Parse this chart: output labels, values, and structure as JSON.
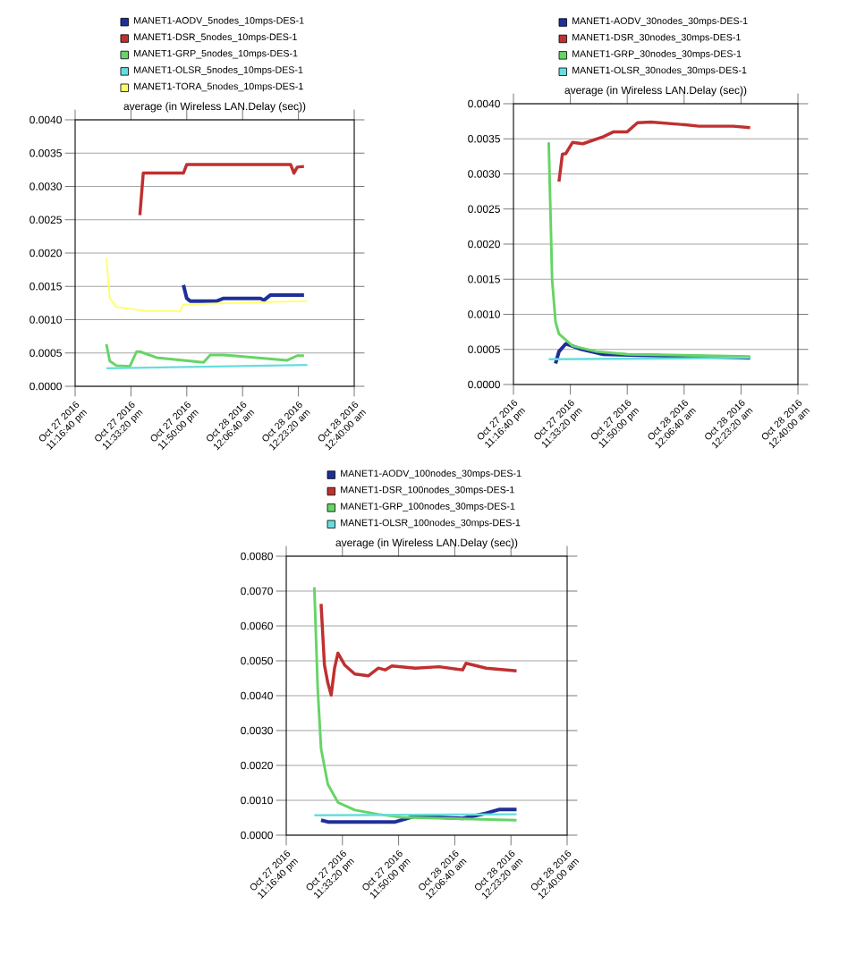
{
  "chart_data": [
    {
      "type": "line",
      "title": "average (in Wireless LAN.Delay (sec))",
      "grid": "y",
      "legend": "top",
      "xlim": [
        "2016-10-27T23:16:40",
        "2016-10-28T00:40:00"
      ],
      "ylim": [
        0,
        0.004
      ],
      "xticks": [
        {
          "value": "2016-10-27T23:16:40",
          "label": "Oct 27 2016 11:16:40 pm"
        },
        {
          "value": "2016-10-27T23:33:20",
          "label": "Oct 27 2016 11:33:20 pm"
        },
        {
          "value": "2016-10-27T23:50:00",
          "label": "Oct 27 2016 11:50:00 pm"
        },
        {
          "value": "2016-10-28T00:06:40",
          "label": "Oct 28 2016 12:06:40 am"
        },
        {
          "value": "2016-10-28T00:23:20",
          "label": "Oct 28 2016 12:23:20 am"
        },
        {
          "value": "2016-10-28T00:40:00",
          "label": "Oct 28 2016 12:40:00 am"
        }
      ],
      "yticks": [
        {
          "value": 0,
          "label": "0.0000"
        },
        {
          "value": 0.0005,
          "label": "0.0005"
        },
        {
          "value": 0.001,
          "label": "0.0010"
        },
        {
          "value": 0.0015,
          "label": "0.0015"
        },
        {
          "value": 0.002,
          "label": "0.0020"
        },
        {
          "value": 0.0025,
          "label": "0.0025"
        },
        {
          "value": 0.003,
          "label": "0.0030"
        },
        {
          "value": 0.0035,
          "label": "0.0035"
        },
        {
          "value": 0.004,
          "label": "0.0040"
        }
      ],
      "series": [
        {
          "name": "MANET1-AODV_5nodes_10mps-DES-1",
          "color": "#1f2f9a",
          "x": [
            "2016-10-27T23:49",
            "2016-10-27T23:50",
            "2016-10-27T23:51",
            "2016-10-27T23:59",
            "2016-10-28T00:01",
            "2016-10-28T00:12",
            "2016-10-28T00:13",
            "2016-10-28T00:15",
            "2016-10-28T00:25"
          ],
          "values": [
            0.00152,
            0.00132,
            0.00128,
            0.00128,
            0.00132,
            0.00132,
            0.00129,
            0.00137,
            0.00137
          ]
        },
        {
          "name": "MANET1-DSR_5nodes_10mps-DES-1",
          "color": "#c03030",
          "x": [
            "2016-10-27T23:36",
            "2016-10-27T23:37",
            "2016-10-27T23:49",
            "2016-10-27T23:50",
            "2016-10-28T00:21",
            "2016-10-28T00:22",
            "2016-10-28T00:23",
            "2016-10-28T00:25"
          ],
          "values": [
            0.00257,
            0.0032,
            0.0032,
            0.00333,
            0.00333,
            0.0032,
            0.00329,
            0.0033
          ]
        },
        {
          "name": "MANET1-GRP_5nodes_10mps-DES-1",
          "color": "#66d466",
          "x": [
            "2016-10-27T23:26",
            "2016-10-27T23:27",
            "2016-10-27T23:29",
            "2016-10-27T23:33",
            "2016-10-27T23:35",
            "2016-10-27T23:36",
            "2016-10-27T23:41",
            "2016-10-27T23:55",
            "2016-10-27T23:57",
            "2016-10-28T00:01",
            "2016-10-28T00:20",
            "2016-10-28T00:23",
            "2016-10-28T00:25"
          ],
          "values": [
            0.00063,
            0.00038,
            0.00031,
            0.0003,
            0.00052,
            0.00052,
            0.00043,
            0.00036,
            0.00047,
            0.00047,
            0.00039,
            0.00046,
            0.00046
          ]
        },
        {
          "name": "MANET1-OLSR_5nodes_10mps-DES-1",
          "color": "#66dddd",
          "x": [
            "2016-10-27T23:26",
            "2016-10-28T00:26"
          ],
          "values": [
            0.00027,
            0.00032
          ]
        },
        {
          "name": "MANET1-TORA_5nodes_10mps-DES-1",
          "color": "#ffff66",
          "x": [
            "2016-10-27T23:26",
            "2016-10-27T23:27",
            "2016-10-27T23:29",
            "2016-10-27T23:38",
            "2016-10-27T23:48",
            "2016-10-27T23:49",
            "2016-10-27T23:50",
            "2016-10-28T00:26"
          ],
          "values": [
            0.00193,
            0.00132,
            0.00119,
            0.00113,
            0.00113,
            0.00123,
            0.00123,
            0.00128
          ]
        }
      ]
    },
    {
      "type": "line",
      "title": "average (in Wireless LAN.Delay (sec))",
      "grid": "y",
      "legend": "top",
      "xlim": [
        "2016-10-27T23:16:40",
        "2016-10-28T00:40:00"
      ],
      "ylim": [
        0,
        0.004
      ],
      "xticks": [
        {
          "value": "2016-10-27T23:16:40",
          "label": "Oct 27 2016 11:16:40 pm"
        },
        {
          "value": "2016-10-27T23:33:20",
          "label": "Oct 27 2016 11:33:20 pm"
        },
        {
          "value": "2016-10-27T23:50:00",
          "label": "Oct 27 2016 11:50:00 pm"
        },
        {
          "value": "2016-10-28T00:06:40",
          "label": "Oct 28 2016 12:06:40 am"
        },
        {
          "value": "2016-10-28T00:23:20",
          "label": "Oct 28 2016 12:23:20 am"
        },
        {
          "value": "2016-10-28T00:40:00",
          "label": "Oct 28 2016 12:40:00 am"
        }
      ],
      "yticks": [
        {
          "value": 0,
          "label": "0.0000"
        },
        {
          "value": 0.0005,
          "label": "0.0005"
        },
        {
          "value": 0.001,
          "label": "0.0010"
        },
        {
          "value": 0.0015,
          "label": "0.0015"
        },
        {
          "value": 0.002,
          "label": "0.0020"
        },
        {
          "value": 0.0025,
          "label": "0.0025"
        },
        {
          "value": 0.003,
          "label": "0.0030"
        },
        {
          "value": 0.0035,
          "label": "0.0035"
        },
        {
          "value": 0.004,
          "label": "0.0040"
        }
      ],
      "series": [
        {
          "name": "MANET1-AODV_30nodes_30mps-DES-1",
          "color": "#1f2f9a",
          "x": [
            "2016-10-27T23:29",
            "2016-10-27T23:30",
            "2016-10-27T23:32",
            "2016-10-27T23:36",
            "2016-10-27T23:43",
            "2016-10-28T00:26"
          ],
          "values": [
            0.0003,
            0.00047,
            0.00058,
            0.00051,
            0.00043,
            0.00038
          ]
        },
        {
          "name": "MANET1-DSR_30nodes_30mps-DES-1",
          "color": "#c03030",
          "x": [
            "2016-10-27T23:30",
            "2016-10-27T23:31",
            "2016-10-27T23:32",
            "2016-10-27T23:34",
            "2016-10-27T23:37",
            "2016-10-27T23:43",
            "2016-10-27T23:46",
            "2016-10-27T23:50",
            "2016-10-27T23:53",
            "2016-10-27T23:57",
            "2016-10-28T00:07",
            "2016-10-28T00:11",
            "2016-10-28T00:21",
            "2016-10-28T00:26"
          ],
          "values": [
            0.00289,
            0.00328,
            0.00329,
            0.00345,
            0.00343,
            0.00353,
            0.0036,
            0.0036,
            0.00373,
            0.00374,
            0.0037,
            0.00368,
            0.00368,
            0.00366
          ]
        },
        {
          "name": "MANET1-GRP_30nodes_30mps-DES-1",
          "color": "#66d466",
          "x": [
            "2016-10-27T23:27",
            "2016-10-27T23:28",
            "2016-10-27T23:29",
            "2016-10-27T23:30",
            "2016-10-27T23:34",
            "2016-10-27T23:41",
            "2016-10-27T23:50",
            "2016-10-28T00:26"
          ],
          "values": [
            0.00345,
            0.00149,
            0.00089,
            0.00072,
            0.00055,
            0.00047,
            0.00043,
            0.0004
          ]
        },
        {
          "name": "MANET1-OLSR_30nodes_30mps-DES-1",
          "color": "#66dddd",
          "x": [
            "2016-10-27T23:27",
            "2016-10-28T00:26"
          ],
          "values": [
            0.00036,
            0.00038
          ]
        }
      ]
    },
    {
      "type": "line",
      "title": "average (in Wireless LAN.Delay (sec))",
      "grid": "y",
      "legend": "top",
      "xlim": [
        "2016-10-27T23:16:40",
        "2016-10-28T00:40:00"
      ],
      "ylim": [
        0,
        0.008
      ],
      "xticks": [
        {
          "value": "2016-10-27T23:16:40",
          "label": "Oct 27 2016 11:16:40 pm"
        },
        {
          "value": "2016-10-27T23:33:20",
          "label": "Oct 27 2016 11:33:20 pm"
        },
        {
          "value": "2016-10-27T23:50:00",
          "label": "Oct 27 2016 11:50:00 pm"
        },
        {
          "value": "2016-10-28T00:06:40",
          "label": "Oct 28 2016 12:06:40 am"
        },
        {
          "value": "2016-10-28T00:23:20",
          "label": "Oct 28 2016 12:23:20 am"
        },
        {
          "value": "2016-10-28T00:40:00",
          "label": "Oct 28 2016 12:40:00 am"
        }
      ],
      "yticks": [
        {
          "value": 0,
          "label": "0.0000"
        },
        {
          "value": 0.001,
          "label": "0.0010"
        },
        {
          "value": 0.002,
          "label": "0.0020"
        },
        {
          "value": 0.003,
          "label": "0.0030"
        },
        {
          "value": 0.004,
          "label": "0.0040"
        },
        {
          "value": 0.005,
          "label": "0.0050"
        },
        {
          "value": 0.006,
          "label": "0.0060"
        },
        {
          "value": 0.007,
          "label": "0.0070"
        },
        {
          "value": 0.008,
          "label": "0.0080"
        }
      ],
      "series": [
        {
          "name": "MANET1-AODV_100nodes_30mps-DES-1",
          "color": "#1f2f9a",
          "x": [
            "2016-10-27T23:27",
            "2016-10-27T23:29",
            "2016-10-27T23:49",
            "2016-10-27T23:55",
            "2016-10-28T00:09",
            "2016-10-28T00:16",
            "2016-10-28T00:20",
            "2016-10-28T00:25"
          ],
          "values": [
            0.00043,
            0.00038,
            0.00038,
            0.00055,
            0.00048,
            0.00063,
            0.00074,
            0.00074
          ]
        },
        {
          "name": "MANET1-DSR_100nodes_30mps-DES-1",
          "color": "#c03030",
          "x": [
            "2016-10-27T23:27",
            "2016-10-27T23:28",
            "2016-10-27T23:29",
            "2016-10-27T23:30",
            "2016-10-27T23:31",
            "2016-10-27T23:32",
            "2016-10-27T23:34",
            "2016-10-27T23:37",
            "2016-10-27T23:41",
            "2016-10-27T23:44",
            "2016-10-27T23:46",
            "2016-10-27T23:48",
            "2016-10-27T23:55",
            "2016-10-28T00:02",
            "2016-10-28T00:09",
            "2016-10-28T00:10",
            "2016-10-28T00:16",
            "2016-10-28T00:25"
          ],
          "values": [
            0.00663,
            0.00488,
            0.00437,
            0.00402,
            0.00479,
            0.00522,
            0.00488,
            0.00462,
            0.00457,
            0.00479,
            0.00474,
            0.00485,
            0.00479,
            0.00483,
            0.00474,
            0.00493,
            0.00479,
            0.00471
          ]
        },
        {
          "name": "MANET1-GRP_100nodes_30mps-DES-1",
          "color": "#66d466",
          "x": [
            "2016-10-27T23:25",
            "2016-10-27T23:26",
            "2016-10-27T23:27",
            "2016-10-27T23:29",
            "2016-10-27T23:32",
            "2016-10-27T23:37",
            "2016-10-27T23:44",
            "2016-10-27T23:51",
            "2016-10-28T00:25"
          ],
          "values": [
            0.00711,
            0.0042,
            0.00248,
            0.00146,
            0.00094,
            0.00072,
            0.0006,
            0.00051,
            0.00043
          ]
        },
        {
          "name": "MANET1-OLSR_100nodes_30mps-DES-1",
          "color": "#66dddd",
          "x": [
            "2016-10-27T23:25",
            "2016-10-28T00:25"
          ],
          "values": [
            0.00057,
            0.0006
          ]
        }
      ]
    }
  ]
}
